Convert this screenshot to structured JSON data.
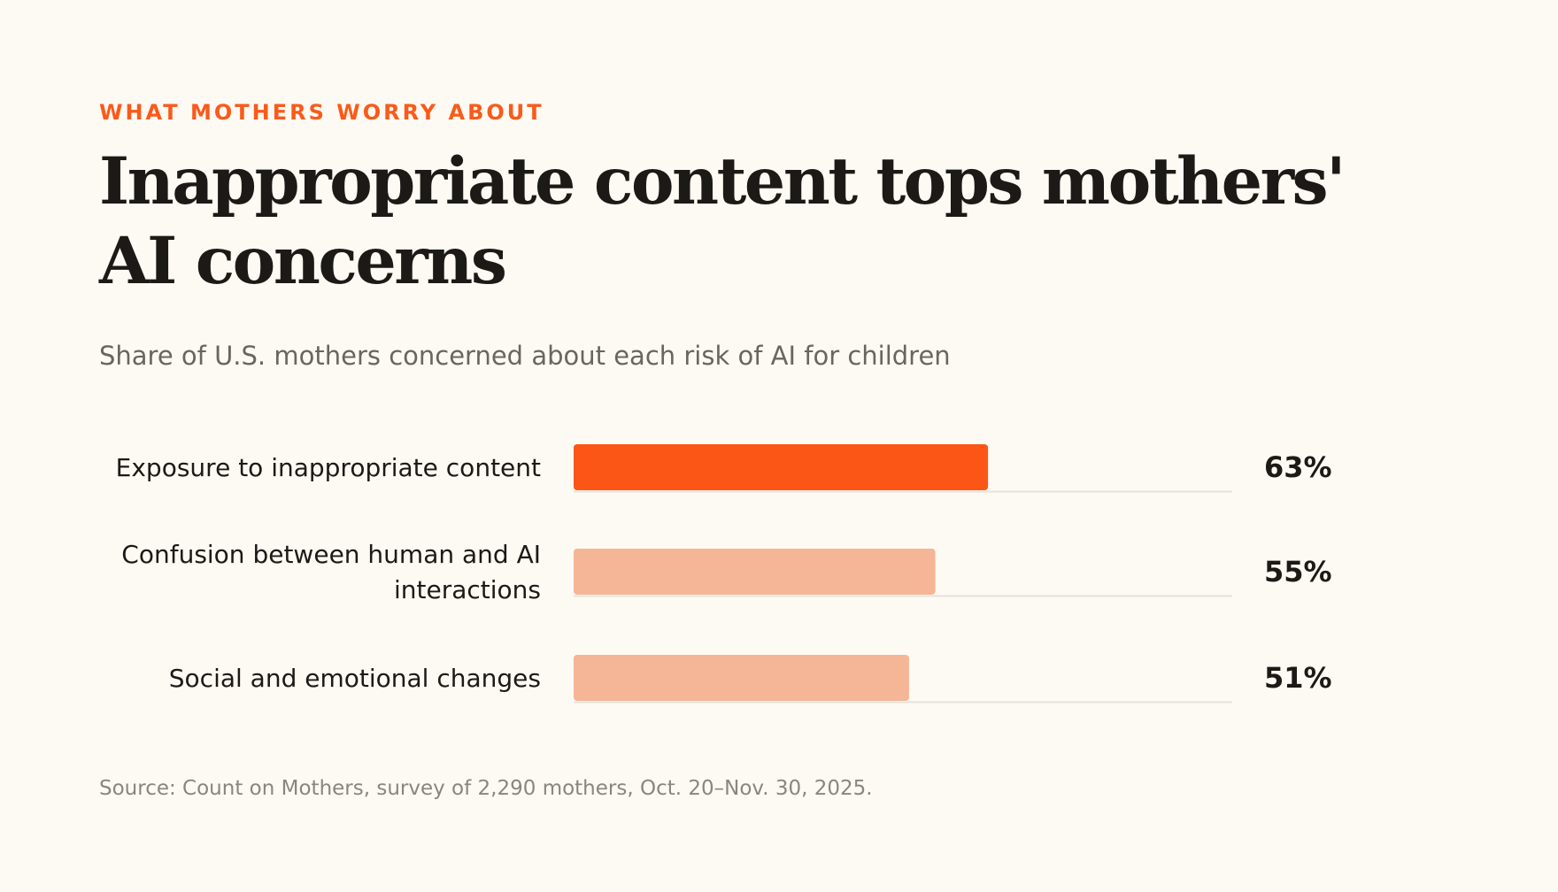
{
  "eyebrow": "WHAT MOTHERS WORRY ABOUT",
  "title": "Inappropriate content tops mothers' AI concerns",
  "subtitle": "Share of U.S. mothers concerned about each risk of AI for children",
  "source": "Source: Count on Mothers, survey of 2,290 mothers, Oct. 20–Nov. 30, 2025.",
  "colors": {
    "accent": "#fa5a1a",
    "highlight_bar": "#fc5616",
    "muted_bar": "#f5b597",
    "track_line": "#e6e2da",
    "background": "#fdfaf3"
  },
  "chart_data": {
    "type": "bar",
    "orientation": "horizontal",
    "title": "Inappropriate content tops mothers' AI concerns",
    "subtitle": "Share of U.S. mothers concerned about each risk of AI for children",
    "categories": [
      [
        "Exposure to inappropriate content"
      ],
      [
        "Confusion between human and AI",
        "interactions"
      ],
      [
        "Social and emotional changes"
      ]
    ],
    "values": [
      63,
      55,
      51
    ],
    "value_labels": [
      "63%",
      "55%",
      "51%"
    ],
    "highlight": [
      true,
      false,
      false
    ],
    "xlim": [
      0,
      100
    ],
    "grid": false,
    "legend": "none"
  }
}
